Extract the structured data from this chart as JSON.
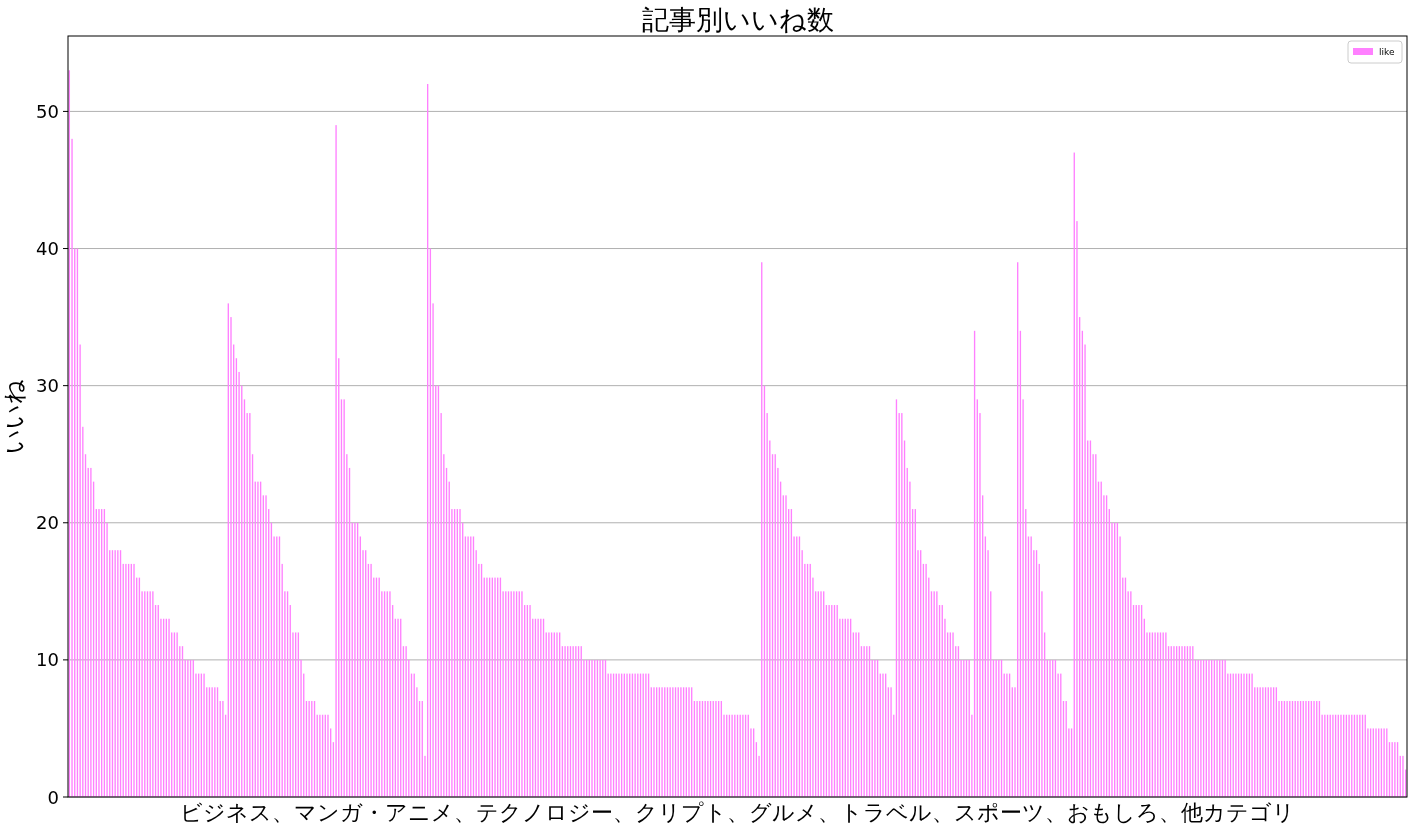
{
  "chart_data": {
    "type": "bar",
    "title": "記事別いいね数",
    "xlabel": "ビジネス、マンガ・アニメ、テクノロジー、クリプト、グルメ、トラベル、スポーツ、おもしろ、他カテゴリ",
    "ylabel": "いいね",
    "legend": "top right",
    "grid": "y",
    "ylim": [
      0,
      55.5
    ],
    "yticks": [
      0,
      10,
      20,
      30,
      40,
      50
    ],
    "categories": [
      null,
      null,
      null,
      null,
      null,
      null,
      null,
      null,
      null,
      null,
      null,
      null,
      null,
      null,
      null,
      null,
      null,
      null,
      null,
      null,
      null,
      null,
      null,
      null,
      null,
      null,
      null,
      null,
      null,
      null,
      null,
      null,
      null,
      null,
      null,
      null,
      null,
      null,
      null,
      null,
      null,
      null,
      null,
      null,
      null,
      null,
      null,
      null,
      null,
      null,
      null,
      null,
      null,
      null,
      null,
      null,
      null,
      null,
      null,
      null,
      null,
      null,
      null,
      null,
      null,
      null,
      null,
      null,
      null,
      null,
      null,
      null,
      null,
      null,
      null,
      null,
      null,
      null,
      null,
      null,
      null,
      null,
      null,
      null,
      null,
      null,
      null,
      null,
      null,
      null,
      null,
      null,
      null,
      null,
      null,
      null,
      null,
      null,
      null,
      null,
      null,
      null,
      null,
      null,
      null,
      null,
      null,
      null,
      null,
      null,
      null,
      null,
      null,
      null,
      null,
      null,
      null,
      null,
      null,
      null,
      null,
      null,
      null,
      null,
      null,
      null,
      null,
      null,
      null,
      null,
      null,
      null,
      null,
      null,
      null,
      null,
      null,
      null,
      null,
      null,
      null,
      null,
      null,
      null,
      null,
      null,
      null,
      null,
      null,
      null,
      null,
      null,
      null,
      null,
      null,
      null,
      null,
      null,
      null,
      null,
      null,
      null,
      null,
      null,
      null,
      null,
      null,
      null,
      null,
      null,
      null,
      null,
      null,
      null,
      null,
      null,
      null,
      null,
      null,
      null,
      null,
      null,
      null,
      null,
      null,
      null,
      null,
      null,
      null,
      null,
      null,
      null,
      null,
      null,
      null,
      null,
      null,
      null,
      null,
      null,
      null,
      null,
      null,
      null,
      null,
      null,
      null,
      null,
      null,
      null,
      null,
      null,
      null,
      null,
      null,
      null,
      null,
      null,
      null,
      null,
      null,
      null,
      null,
      null,
      null,
      null,
      null,
      null,
      null,
      null,
      null,
      null,
      null,
      null,
      null,
      null,
      null,
      null,
      null,
      null,
      null,
      null,
      null,
      null,
      null,
      null,
      null,
      null,
      null,
      null,
      null,
      null,
      null,
      null,
      null,
      null,
      null,
      null,
      null,
      null,
      null,
      null,
      null,
      null,
      null,
      null,
      null,
      null,
      null,
      null,
      null,
      null,
      null,
      null,
      null,
      null,
      null,
      null,
      null,
      null,
      null,
      null,
      null,
      null,
      null,
      null,
      null,
      null,
      null,
      null,
      null,
      null,
      null,
      null,
      null,
      null,
      null,
      null,
      null,
      null,
      null,
      null,
      null,
      null,
      null,
      null,
      null,
      null,
      null,
      null,
      null,
      null,
      null,
      null,
      null,
      null,
      null,
      null,
      null,
      null,
      null,
      null,
      null,
      null,
      null,
      null,
      null,
      null,
      null,
      null,
      null,
      null,
      null,
      null,
      null,
      null,
      null,
      null,
      null,
      null,
      null,
      null,
      null,
      null,
      null,
      null,
      null,
      null,
      null,
      null,
      null,
      null,
      null,
      null,
      null,
      null,
      null,
      null,
      null,
      null,
      null,
      null,
      null,
      null,
      null,
      null,
      null,
      null,
      null,
      null,
      null,
      null,
      null,
      null,
      null,
      null,
      null,
      null,
      null,
      null,
      null,
      null,
      null,
      null,
      null,
      null,
      null,
      null,
      null,
      null,
      null,
      null,
      null,
      null,
      null,
      null,
      null,
      null,
      null,
      null,
      null,
      null,
      null,
      null,
      null,
      null,
      null,
      null,
      null,
      null,
      null,
      null,
      null,
      null,
      null,
      null,
      null,
      null,
      null,
      null,
      null,
      null,
      null,
      null,
      null,
      null,
      null,
      null,
      null,
      null,
      null,
      null,
      null,
      null,
      null,
      null,
      null,
      null,
      null,
      null,
      null,
      null,
      null,
      null,
      null,
      null,
      null,
      null,
      null,
      null,
      null,
      null,
      null,
      null,
      null,
      null,
      null,
      null,
      null,
      null,
      null,
      null,
      null,
      null,
      null,
      null,
      null,
      null,
      null,
      null,
      null,
      null,
      null,
      null,
      null,
      null,
      null,
      null,
      null,
      null,
      null,
      null,
      null,
      null,
      null,
      null,
      null,
      null,
      null,
      null,
      null,
      null,
      null,
      null,
      null,
      null,
      null
    ],
    "series": [
      {
        "name": "like",
        "color": "#ff80ff",
        "values": [
          53,
          48,
          40,
          40,
          33,
          27,
          25,
          24,
          24,
          23,
          21,
          21,
          21,
          21,
          20,
          18,
          18,
          18,
          18,
          18,
          17,
          17,
          17,
          17,
          17,
          16,
          16,
          15,
          15,
          15,
          15,
          15,
          14,
          14,
          13,
          13,
          13,
          13,
          12,
          12,
          12,
          11,
          11,
          10,
          10,
          10,
          10,
          9,
          9,
          9,
          9,
          8,
          8,
          8,
          8,
          8,
          7,
          7,
          6,
          36,
          35,
          33,
          32,
          31,
          30,
          29,
          28,
          28,
          25,
          23,
          23,
          23,
          22,
          22,
          21,
          20,
          19,
          19,
          19,
          17,
          15,
          15,
          14,
          12,
          12,
          12,
          10,
          9,
          7,
          7,
          7,
          7,
          6,
          6,
          6,
          6,
          6,
          5,
          4,
          49,
          32,
          29,
          29,
          25,
          24,
          20,
          20,
          20,
          19,
          18,
          18,
          17,
          17,
          16,
          16,
          16,
          15,
          15,
          15,
          15,
          14,
          13,
          13,
          13,
          11,
          11,
          10,
          9,
          9,
          8,
          7,
          7,
          3,
          52,
          40,
          36,
          30,
          30,
          28,
          25,
          24,
          23,
          21,
          21,
          21,
          21,
          20,
          19,
          19,
          19,
          19,
          18,
          17,
          17,
          16,
          16,
          16,
          16,
          16,
          16,
          16,
          15,
          15,
          15,
          15,
          15,
          15,
          15,
          15,
          14,
          14,
          14,
          13,
          13,
          13,
          13,
          13,
          12,
          12,
          12,
          12,
          12,
          12,
          11,
          11,
          11,
          11,
          11,
          11,
          11,
          11,
          10,
          10,
          10,
          10,
          10,
          10,
          10,
          10,
          10,
          9,
          9,
          9,
          9,
          9,
          9,
          9,
          9,
          9,
          9,
          9,
          9,
          9,
          9,
          9,
          9,
          8,
          8,
          8,
          8,
          8,
          8,
          8,
          8,
          8,
          8,
          8,
          8,
          8,
          8,
          8,
          8,
          7,
          7,
          7,
          7,
          7,
          7,
          7,
          7,
          7,
          7,
          7,
          6,
          6,
          6,
          6,
          6,
          6,
          6,
          6,
          6,
          6,
          5,
          5,
          4,
          3,
          39,
          30,
          28,
          26,
          25,
          25,
          24,
          23,
          22,
          22,
          21,
          21,
          19,
          19,
          19,
          18,
          17,
          17,
          17,
          16,
          15,
          15,
          15,
          15,
          14,
          14,
          14,
          14,
          14,
          13,
          13,
          13,
          13,
          13,
          12,
          12,
          12,
          11,
          11,
          11,
          11,
          10,
          10,
          10,
          9,
          9,
          9,
          8,
          8,
          6,
          29,
          28,
          28,
          26,
          24,
          23,
          21,
          21,
          18,
          18,
          17,
          17,
          16,
          15,
          15,
          15,
          14,
          14,
          13,
          12,
          12,
          12,
          11,
          11,
          10,
          10,
          10,
          10,
          6,
          34,
          29,
          28,
          22,
          19,
          18,
          15,
          10,
          10,
          10,
          10,
          9,
          9,
          9,
          8,
          8,
          39,
          34,
          29,
          21,
          19,
          19,
          18,
          18,
          17,
          15,
          12,
          10,
          10,
          10,
          10,
          9,
          9,
          7,
          7,
          5,
          5,
          47,
          42,
          35,
          34,
          33,
          26,
          26,
          25,
          25,
          23,
          23,
          22,
          22,
          21,
          20,
          20,
          20,
          19,
          16,
          16,
          15,
          15,
          14,
          14,
          14,
          14,
          13,
          12,
          12,
          12,
          12,
          12,
          12,
          12,
          12,
          11,
          11,
          11,
          11,
          11,
          11,
          11,
          11,
          11,
          11,
          10,
          10,
          10,
          10,
          10,
          10,
          10,
          10,
          10,
          10,
          10,
          10,
          9,
          9,
          9,
          9,
          9,
          9,
          9,
          9,
          9,
          9,
          8,
          8,
          8,
          8,
          8,
          8,
          8,
          8,
          8,
          7,
          7,
          7,
          7,
          7,
          7,
          7,
          7,
          7,
          7,
          7,
          7,
          7,
          7,
          7,
          7,
          6,
          6,
          6,
          6,
          6,
          6,
          6,
          6,
          6,
          6,
          6,
          6,
          6,
          6,
          6,
          6,
          6,
          5,
          5,
          5,
          5,
          5,
          5,
          5,
          5,
          4,
          4,
          4,
          4,
          3,
          3,
          2
        ]
      }
    ]
  }
}
